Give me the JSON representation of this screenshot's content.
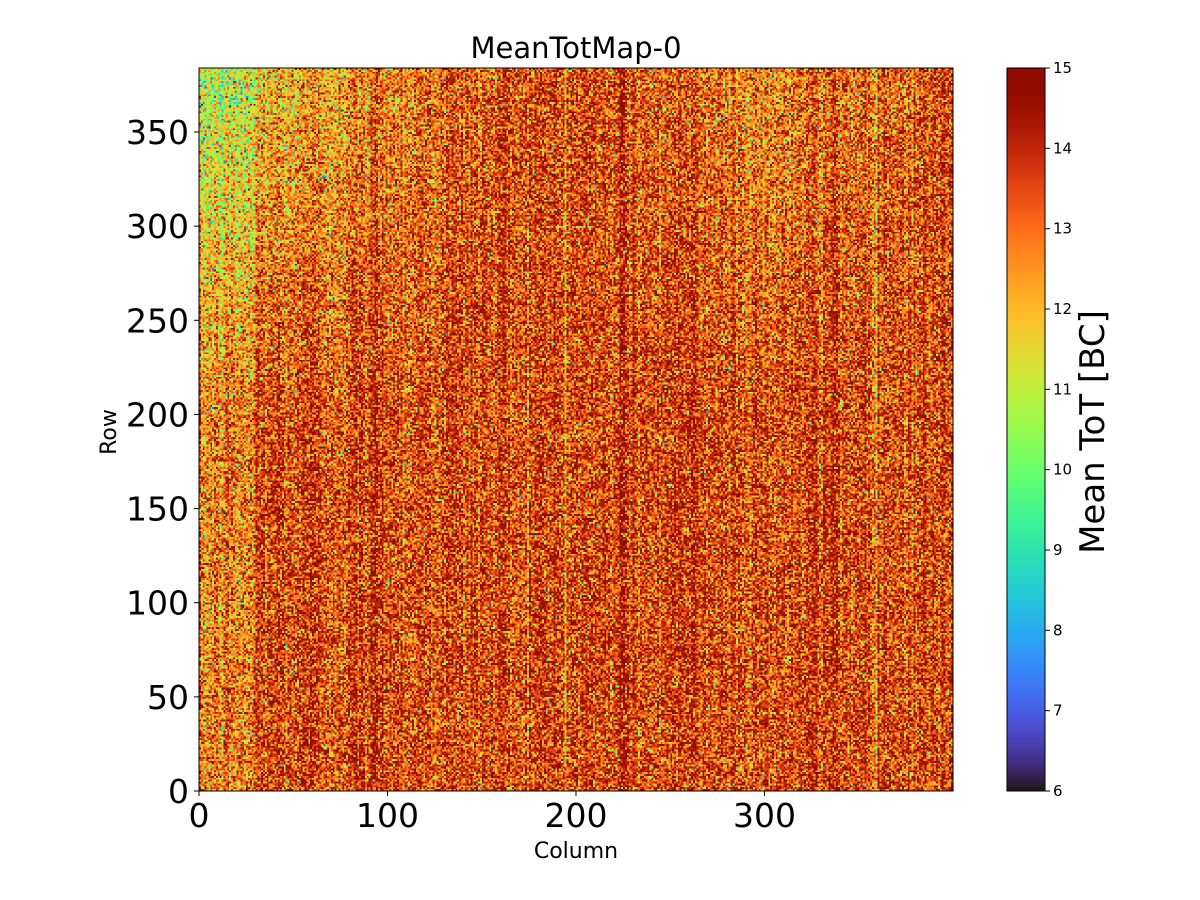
{
  "chart_data": {
    "type": "heatmap",
    "title": "MeanTotMap-0",
    "xlabel": "Column",
    "ylabel": "Row",
    "colorbar_label": "Mean ToT [BC]",
    "colormap": "turbo",
    "grid": false,
    "n_columns": 400,
    "n_rows": 384,
    "xlim": [
      0,
      400
    ],
    "ylim": [
      0,
      384
    ],
    "x_ticks": [
      0,
      100,
      200,
      300
    ],
    "y_ticks": [
      0,
      50,
      100,
      150,
      200,
      250,
      300,
      350
    ],
    "colorbar_range": [
      6,
      15
    ],
    "colorbar_ticks": [
      6,
      7,
      8,
      9,
      10,
      11,
      12,
      13,
      14,
      15
    ],
    "value_summary": {
      "typical_range": [
        10,
        15
      ],
      "dominant_value": 14,
      "lower_values_region": "top-left (rows 250-384, columns 0-150)",
      "darker_vertical_stripes_columns": [
        95,
        225,
        262,
        337
      ]
    }
  }
}
